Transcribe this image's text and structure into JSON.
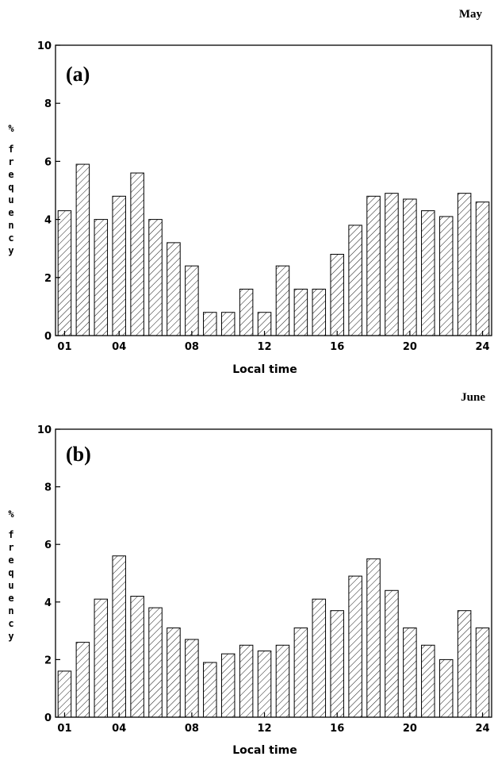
{
  "chart_data": [
    {
      "type": "bar",
      "month": "May",
      "panel_label": "(a)",
      "xlabel": "Local time",
      "ylabel": "% frequency",
      "ylabel_lines": [
        "%",
        "f",
        "r",
        "e",
        "q",
        "u",
        "e",
        "n",
        "c",
        "y"
      ],
      "ylim": [
        0,
        10
      ],
      "yticks": [
        "0",
        "2",
        "4",
        "6",
        "8",
        "10"
      ],
      "xtick_labels": [
        "01",
        "04",
        "08",
        "12",
        "16",
        "20",
        "24"
      ],
      "xtick_hours": [
        1,
        4,
        8,
        12,
        16,
        20,
        24
      ],
      "categories": [
        "01",
        "02",
        "03",
        "04",
        "05",
        "06",
        "07",
        "08",
        "09",
        "10",
        "11",
        "12",
        "13",
        "14",
        "15",
        "16",
        "17",
        "18",
        "19",
        "20",
        "21",
        "22",
        "23",
        "24"
      ],
      "values": [
        4.3,
        5.9,
        4.0,
        4.8,
        5.6,
        4.0,
        3.2,
        2.4,
        0.8,
        0.8,
        1.6,
        0.8,
        2.4,
        1.6,
        1.6,
        2.8,
        3.8,
        4.8,
        4.9,
        4.7,
        4.3,
        4.1,
        4.9,
        4.6
      ]
    },
    {
      "type": "bar",
      "month": "June",
      "panel_label": "(b)",
      "xlabel": "Local time",
      "ylabel": "% frequency",
      "ylabel_lines": [
        "%",
        "f",
        "r",
        "e",
        "q",
        "u",
        "e",
        "n",
        "c",
        "y"
      ],
      "ylim": [
        0,
        10
      ],
      "yticks": [
        "0",
        "2",
        "4",
        "6",
        "8",
        "10"
      ],
      "xtick_labels": [
        "01",
        "04",
        "08",
        "12",
        "16",
        "20",
        "24"
      ],
      "xtick_hours": [
        1,
        4,
        8,
        12,
        16,
        20,
        24
      ],
      "categories": [
        "01",
        "02",
        "03",
        "04",
        "05",
        "06",
        "07",
        "08",
        "09",
        "10",
        "11",
        "12",
        "13",
        "14",
        "15",
        "16",
        "17",
        "18",
        "19",
        "20",
        "21",
        "22",
        "23",
        "24"
      ],
      "values": [
        1.6,
        2.6,
        4.1,
        5.6,
        4.2,
        3.8,
        3.1,
        2.7,
        1.9,
        2.2,
        2.5,
        2.3,
        2.5,
        3.1,
        4.1,
        3.7,
        4.9,
        5.5,
        4.4,
        3.1,
        2.5,
        2.0,
        3.7,
        3.1
      ]
    }
  ]
}
